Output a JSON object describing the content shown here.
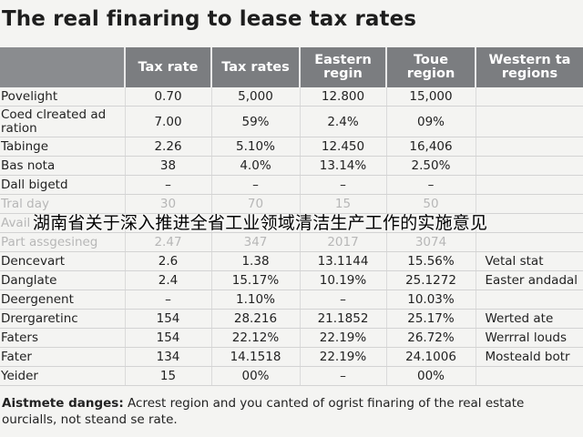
{
  "title": "The real finaring to lease tax rates",
  "table": {
    "headers": [
      "",
      "Tax rate",
      "Tax rates",
      "Eastern regin",
      "Toue region",
      "Western ta regions"
    ],
    "rows": [
      {
        "cells": [
          "Povelight",
          "0.70",
          "5,000",
          "12.800",
          "15,000",
          ""
        ]
      },
      {
        "cells": [
          "Coed clreated ad ration",
          "7.00",
          "59%",
          "2.4%",
          "09%",
          ""
        ],
        "wrap": true
      },
      {
        "cells": [
          "Tabinge",
          "2.26",
          "5.10%",
          "12.450",
          "16,406",
          ""
        ]
      },
      {
        "cells": [
          "Bas nota",
          "38",
          "4.0%",
          "13.14%",
          "2.50%",
          ""
        ]
      },
      {
        "cells": [
          "Dall bigetd",
          "–",
          "–",
          "–",
          "–",
          ""
        ]
      },
      {
        "cells": [
          "Tral day",
          "30",
          "70",
          "15",
          "50",
          ""
        ],
        "faded": true
      },
      {
        "cells": [
          "Avail",
          "",
          "",
          "",
          "",
          ""
        ],
        "faded": true
      },
      {
        "cells": [
          "Part assgesineg",
          "2.47",
          "347",
          "2017",
          "3074",
          ""
        ],
        "faded": true
      },
      {
        "cells": [
          "Dencevart",
          "2.6",
          "1.38",
          "13.1144",
          "15.56%",
          "Vetal stat"
        ]
      },
      {
        "cells": [
          "Danglate",
          "2.4",
          "15.17%",
          "10.19%",
          "25.1272",
          "Easter andadal"
        ]
      },
      {
        "cells": [
          "Deergenent",
          "–",
          "1.10%",
          "–",
          "10.03%",
          ""
        ]
      },
      {
        "cells": [
          "Drergaretinc",
          "154",
          "28.216",
          "21.1852",
          "25.17%",
          "Werted ate"
        ]
      },
      {
        "cells": [
          "Faters",
          "154",
          "22.12%",
          "22.19%",
          "26.72%",
          "Werrral louds"
        ]
      },
      {
        "cells": [
          "Fater",
          "134",
          "14.1518",
          "22.19%",
          "24.1006",
          "Mosteald botr"
        ]
      },
      {
        "cells": [
          "Yeider",
          "15",
          "00%",
          "–",
          "00%",
          ""
        ]
      }
    ]
  },
  "overlay_text": "湖南省关于深入推进全省工业领域清洁生产工作的实施意见",
  "note": {
    "label": "Aistmete danges:",
    "text": " Acrest region and you canted of ogrist finaring of the real estate ourcialls, not steand se rate."
  }
}
